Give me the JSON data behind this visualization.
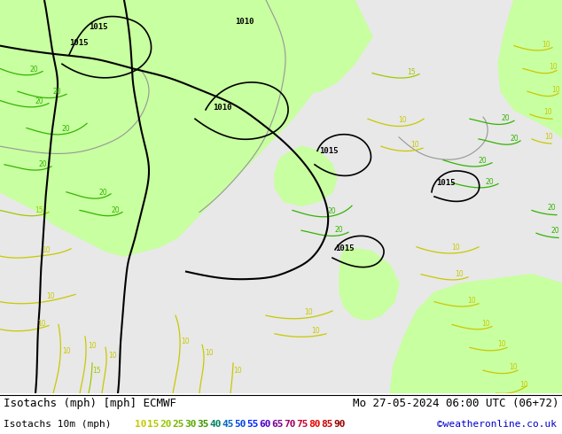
{
  "title_left": "Isotachs (mph) [mph] ECMWF",
  "title_right": "Mo 27-05-2024 06:00 UTC (06+72)",
  "legend_label": "Isotachs 10m (mph)",
  "copyright": "©weatheronline.co.uk",
  "legend_values": [
    "10",
    "15",
    "20",
    "25",
    "30",
    "35",
    "40",
    "45",
    "50",
    "55",
    "60",
    "65",
    "70",
    "75",
    "80",
    "85",
    "90"
  ],
  "legend_colors": [
    "#c8c800",
    "#b4c800",
    "#96c800",
    "#78b400",
    "#5aaa00",
    "#3c9600",
    "#008264",
    "#0064c8",
    "#0046e6",
    "#0028ff",
    "#5000c8",
    "#780096",
    "#a00064",
    "#c80032",
    "#e60000",
    "#c80000",
    "#960000"
  ],
  "fig_width": 6.34,
  "fig_height": 4.9,
  "dpi": 100,
  "map_bg": "#e8e8e8",
  "green_shade": "#c8ffa0",
  "title_fontsize": 9.0,
  "legend_fontsize": 8.0,
  "copyright_color": "#0000cc",
  "yellow_color": "#c8c800",
  "green_color": "#32b400",
  "black_color": "#000000",
  "gray_color": "#969696",
  "isobar_color": "#000000"
}
